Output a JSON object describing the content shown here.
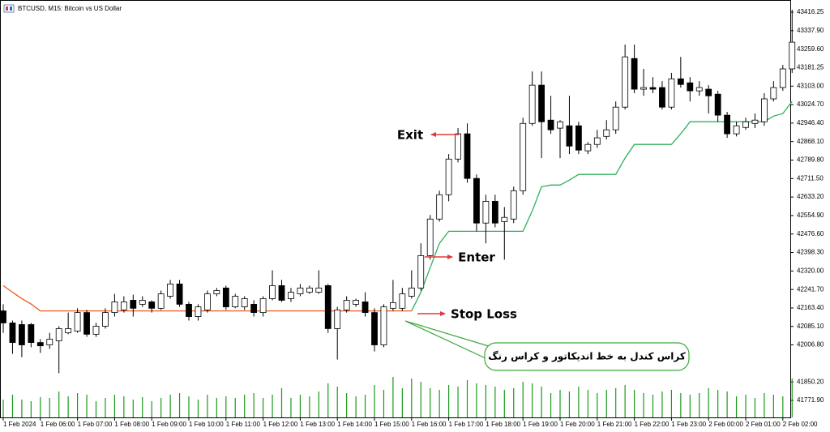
{
  "chart_data": {
    "type": "candlestick",
    "title": "BTCUSD, M15: Bitcoin vs US Dollar",
    "categories": [
      "1 Feb 2024",
      null,
      null,
      null,
      "1 Feb 06:00",
      null,
      null,
      null,
      "1 Feb 07:00",
      null,
      null,
      null,
      "1 Feb 08:00",
      null,
      null,
      null,
      "1 Feb 09:00",
      null,
      null,
      null,
      "1 Feb 10:00",
      null,
      null,
      null,
      "1 Feb 11:00",
      null,
      null,
      null,
      "1 Feb 12:00",
      null,
      null,
      null,
      "1 Feb 13:00",
      null,
      null,
      null,
      "1 Feb 14:00",
      null,
      null,
      null,
      "1 Feb 15:00",
      null,
      null,
      null,
      "1 Feb 16:00",
      null,
      null,
      null,
      "1 Feb 17:00",
      null,
      null,
      null,
      "1 Feb 18:00",
      null,
      null,
      null,
      "1 Feb 19:00",
      null,
      null,
      null,
      "1 Feb 20:00",
      null,
      null,
      null,
      "1 Feb 21:00",
      null,
      null,
      null,
      "1 Feb 22:00",
      null,
      null,
      null,
      "1 Feb 23:00",
      null,
      null,
      null,
      "2 Feb 00:00",
      null,
      null,
      null,
      "2 Feb 01:00",
      null,
      null,
      null,
      "2 Feb 02:00",
      null
    ],
    "open": [
      42151,
      42100,
      42093,
      42093,
      42017,
      42007,
      42024,
      42058,
      42065,
      42144,
      42052,
      42086,
      42144,
      42155,
      42196,
      42179,
      42189,
      42162,
      42213,
      42265,
      42179,
      42127,
      42155,
      42223,
      42248,
      42168,
      42168,
      42179,
      42144,
      42203,
      42258,
      42203,
      42223,
      42230,
      42230,
      42258,
      42076,
      42155,
      42179,
      42189,
      42144,
      42007,
      42162,
      42162,
      42213,
      42248,
      42385,
      42540,
      42643,
      42794,
      42901,
      42712,
      42523,
      42615,
      42529,
      42540,
      42660,
      42945,
      43107,
      42959,
      42925,
      42935,
      42935,
      42829,
      42856,
      42890,
      42918,
      43014,
      43220,
      43090,
      43097,
      43097,
      43014,
      43134,
      43117,
      43083,
      43090,
      43069,
      42980,
      42901,
      42928,
      42945,
      42952,
      43049,
      43097,
      43176
    ],
    "high": [
      42179,
      42110,
      42110,
      42100,
      42031,
      42058,
      42086,
      42144,
      42162,
      42155,
      42100,
      42162,
      42223,
      42213,
      42220,
      42213,
      42196,
      42237,
      42282,
      42282,
      42189,
      42179,
      42237,
      42248,
      42258,
      42223,
      42213,
      42196,
      42213,
      42323,
      42282,
      42248,
      42265,
      42258,
      42323,
      42265,
      42168,
      42213,
      42203,
      42230,
      42162,
      42179,
      42282,
      42248,
      42323,
      42437,
      42557,
      42660,
      42815,
      42925,
      42945,
      42729,
      42643,
      42643,
      42591,
      42677,
      42969,
      43165,
      43165,
      43062,
      42959,
      43062,
      42952,
      42866,
      42918,
      42959,
      43038,
      43279,
      43279,
      43176,
      43141,
      43124,
      43159,
      43227,
      43141,
      43124,
      43107,
      43083,
      42994,
      42952,
      42969,
      42987,
      43073,
      43124,
      43193,
      43427
    ],
    "low": [
      42058,
      41969,
      41955,
      41997,
      41973,
      41990,
      41887,
      42052,
      42058,
      42041,
      42041,
      42076,
      42127,
      42144,
      42127,
      42168,
      42144,
      42155,
      42203,
      42168,
      42110,
      42110,
      42144,
      42213,
      42155,
      42162,
      42155,
      42127,
      42127,
      42196,
      42189,
      42189,
      42213,
      42223,
      42223,
      42058,
      41945,
      42144,
      42168,
      42127,
      41979,
      41997,
      42151,
      42151,
      42203,
      42237,
      42368,
      42529,
      42615,
      42780,
      42694,
      42488,
      42437,
      42505,
      42368,
      42523,
      42643,
      42935,
      42798,
      42901,
      42798,
      42815,
      42815,
      42815,
      42842,
      42877,
      42901,
      43004,
      43073,
      43062,
      43073,
      43004,
      43004,
      43097,
      43038,
      43062,
      42987,
      42952,
      42884,
      42890,
      42918,
      42925,
      42935,
      43038,
      43083,
      43159
    ],
    "close": [
      42100,
      42017,
      42007,
      42017,
      42003,
      42031,
      42076,
      42076,
      42144,
      42052,
      42086,
      42144,
      42189,
      42189,
      42162,
      42196,
      42162,
      42223,
      42265,
      42179,
      42127,
      42168,
      42223,
      42237,
      42168,
      42213,
      42203,
      42144,
      42203,
      42258,
      42196,
      42230,
      42248,
      42248,
      42248,
      42076,
      42155,
      42196,
      42196,
      42144,
      42007,
      42168,
      42186,
      42223,
      42248,
      42385,
      42540,
      42643,
      42794,
      42901,
      42712,
      42523,
      42615,
      42523,
      42547,
      42660,
      42945,
      43107,
      42952,
      42918,
      42952,
      42849,
      42832,
      42856,
      42884,
      42918,
      43014,
      43227,
      43090,
      43097,
      43090,
      43014,
      43134,
      43110,
      43083,
      43097,
      43062,
      42980,
      42901,
      42935,
      42952,
      42959,
      43049,
      43097,
      43176,
      43289
    ],
    "volume": [
      22,
      28,
      22,
      20,
      25,
      24,
      32,
      26,
      30,
      28,
      20,
      24,
      28,
      26,
      22,
      25,
      20,
      24,
      28,
      30,
      26,
      22,
      28,
      24,
      26,
      24,
      28,
      30,
      24,
      28,
      36,
      24,
      28,
      26,
      32,
      42,
      38,
      30,
      26,
      28,
      40,
      34,
      50,
      36,
      48,
      44,
      36,
      34,
      40,
      38,
      46,
      42,
      40,
      38,
      34,
      36,
      44,
      42,
      38,
      30,
      34,
      32,
      38,
      34,
      30,
      34,
      36,
      40,
      34,
      30,
      28,
      32,
      34,
      30,
      28,
      30,
      36,
      34,
      32,
      26,
      28,
      24,
      30,
      28,
      26,
      48
    ],
    "volume_color": "#1a9a1a",
    "lines": [
      {
        "color": "#f05a1a",
        "values": [
          42258,
          42230,
          42203,
          42180,
          42151,
          42151,
          42151,
          42151,
          42151,
          42151,
          42151,
          42151,
          42151,
          42151,
          42151,
          42151,
          42151,
          42151,
          42151,
          42151,
          42151,
          42151,
          42151,
          42151,
          42151,
          42151,
          42151,
          42151,
          42151,
          42151,
          42151,
          42151,
          42151,
          42151,
          42151,
          42151,
          42151,
          42151,
          42151,
          42151,
          42151,
          42151,
          42151,
          42151,
          42151,
          null,
          null,
          null,
          null,
          null,
          null,
          null,
          null,
          null,
          null,
          null,
          null,
          null,
          null,
          null,
          null,
          null,
          null,
          null,
          null,
          null,
          null,
          null,
          null,
          null,
          null,
          null,
          null,
          null,
          null,
          null,
          null,
          null,
          null,
          null,
          null,
          null,
          null,
          null,
          null,
          null
        ]
      },
      {
        "color": "#2eb05a",
        "values": [
          null,
          null,
          null,
          null,
          null,
          null,
          null,
          null,
          null,
          null,
          null,
          null,
          null,
          null,
          null,
          null,
          null,
          null,
          null,
          null,
          null,
          null,
          null,
          null,
          null,
          null,
          null,
          null,
          null,
          null,
          null,
          null,
          null,
          null,
          null,
          null,
          null,
          null,
          null,
          null,
          null,
          null,
          null,
          null,
          42151,
          42230,
          42334,
          42437,
          42488,
          42488,
          42488,
          42488,
          42488,
          42488,
          42488,
          42488,
          42488,
          42574,
          42677,
          42684,
          42684,
          42705,
          42729,
          42729,
          42729,
          42729,
          42729,
          42798,
          42856,
          42856,
          42856,
          42856,
          42856,
          42901,
          42952,
          42952,
          42952,
          42952,
          42952,
          42952,
          42952,
          42952,
          42952,
          42976,
          42987,
          43038
        ]
      }
    ],
    "ylim": [
      41699.8,
      43467.8
    ],
    "yticks": [
      {
        "value": 43416.25,
        "label": "43416.25"
      },
      {
        "value": 43337.9,
        "label": "43337.90"
      },
      {
        "value": 43259.6,
        "label": "43259.60"
      },
      {
        "value": 43181.25,
        "label": "43181.25"
      },
      {
        "value": 43103,
        "label": "43103.00"
      },
      {
        "value": 43024.7,
        "label": "43024.70"
      },
      {
        "value": 42946.4,
        "label": "42946.40"
      },
      {
        "value": 42868.1,
        "label": "42868.10"
      },
      {
        "value": 42789.8,
        "label": "42789.80"
      },
      {
        "value": 42711.5,
        "label": "42711.50"
      },
      {
        "value": 42633.2,
        "label": "42633.20"
      },
      {
        "value": 42554.9,
        "label": "42554.90"
      },
      {
        "value": 42476.6,
        "label": "42476.60"
      },
      {
        "value": 42398.3,
        "label": "42398.30"
      },
      {
        "value": 42320,
        "label": "42320.00"
      },
      {
        "value": 42241.7,
        "label": "42241.70"
      },
      {
        "value": 42163.4,
        "label": "42163.40"
      },
      {
        "value": 42085.1,
        "label": "42085.10"
      },
      {
        "value": 42006.8,
        "label": "42006.80"
      },
      {
        "value": 41850.2,
        "label": "41850.20"
      },
      {
        "value": 41771.9,
        "label": "41771.90"
      }
    ],
    "grid": false,
    "annotations": [
      {
        "text": "Exit",
        "color": "#2444d8"
      },
      {
        "text": "Enter",
        "color": "#2e9d3c"
      },
      {
        "text": "Stop Loss",
        "color": "#f0504a"
      },
      {
        "text": "کراس کندل به خط اندیکاتور و کراس رنگ",
        "color": "#000000"
      }
    ]
  }
}
